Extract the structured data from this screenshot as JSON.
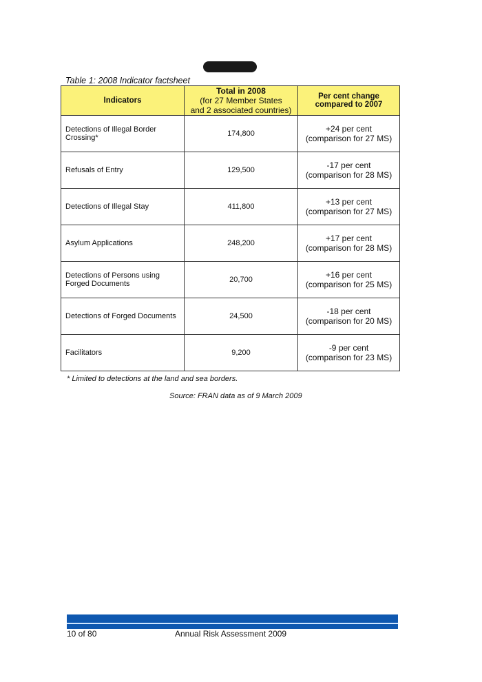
{
  "caption": "Table 1:  2008 Indicator factsheet",
  "headers": {
    "indicators": "Indicators",
    "total_title": "Total in 2008",
    "total_sub1": "(for 27 Member States",
    "total_sub2": "and 2 associated countries)",
    "change": "Per cent change compared to 2007"
  },
  "rows": [
    {
      "indicator": "Detections of Illegal Border Crossing*",
      "total": "174,800",
      "change": "+24 per cent",
      "comparison": "(comparison for 27 MS)"
    },
    {
      "indicator": "Refusals of Entry",
      "total": "129,500",
      "change": "-17 per cent",
      "comparison": "(comparison for 28 MS)"
    },
    {
      "indicator": "Detections of Illegal Stay",
      "total": "411,800",
      "change": "+13 per cent",
      "comparison": "(comparison for 27 MS)"
    },
    {
      "indicator": "Asylum Applications",
      "total": "248,200",
      "change": "+17 per cent",
      "comparison": "(comparison for 28 MS)"
    },
    {
      "indicator": "Detections of Persons using Forged Documents",
      "total": "20,700",
      "change": "+16 per cent",
      "comparison": "(comparison for 25 MS)"
    },
    {
      "indicator": "Detections of Forged Documents",
      "total": "24,500",
      "change": "-18 per cent",
      "comparison": "(comparison for 20 MS)"
    },
    {
      "indicator": "Facilitators",
      "total": "9,200",
      "change": "-9 per cent",
      "comparison": "(comparison for 23 MS)"
    }
  ],
  "footnote": "* Limited to detections at the land and sea borders.",
  "source": "Source: FRAN data as of 9 March 2009",
  "footer": {
    "page": "10 of 80",
    "title": "Annual Risk Assessment 2009"
  },
  "colors": {
    "header_bg": "#fbf27a",
    "footer_bar": "#0f58b0"
  }
}
